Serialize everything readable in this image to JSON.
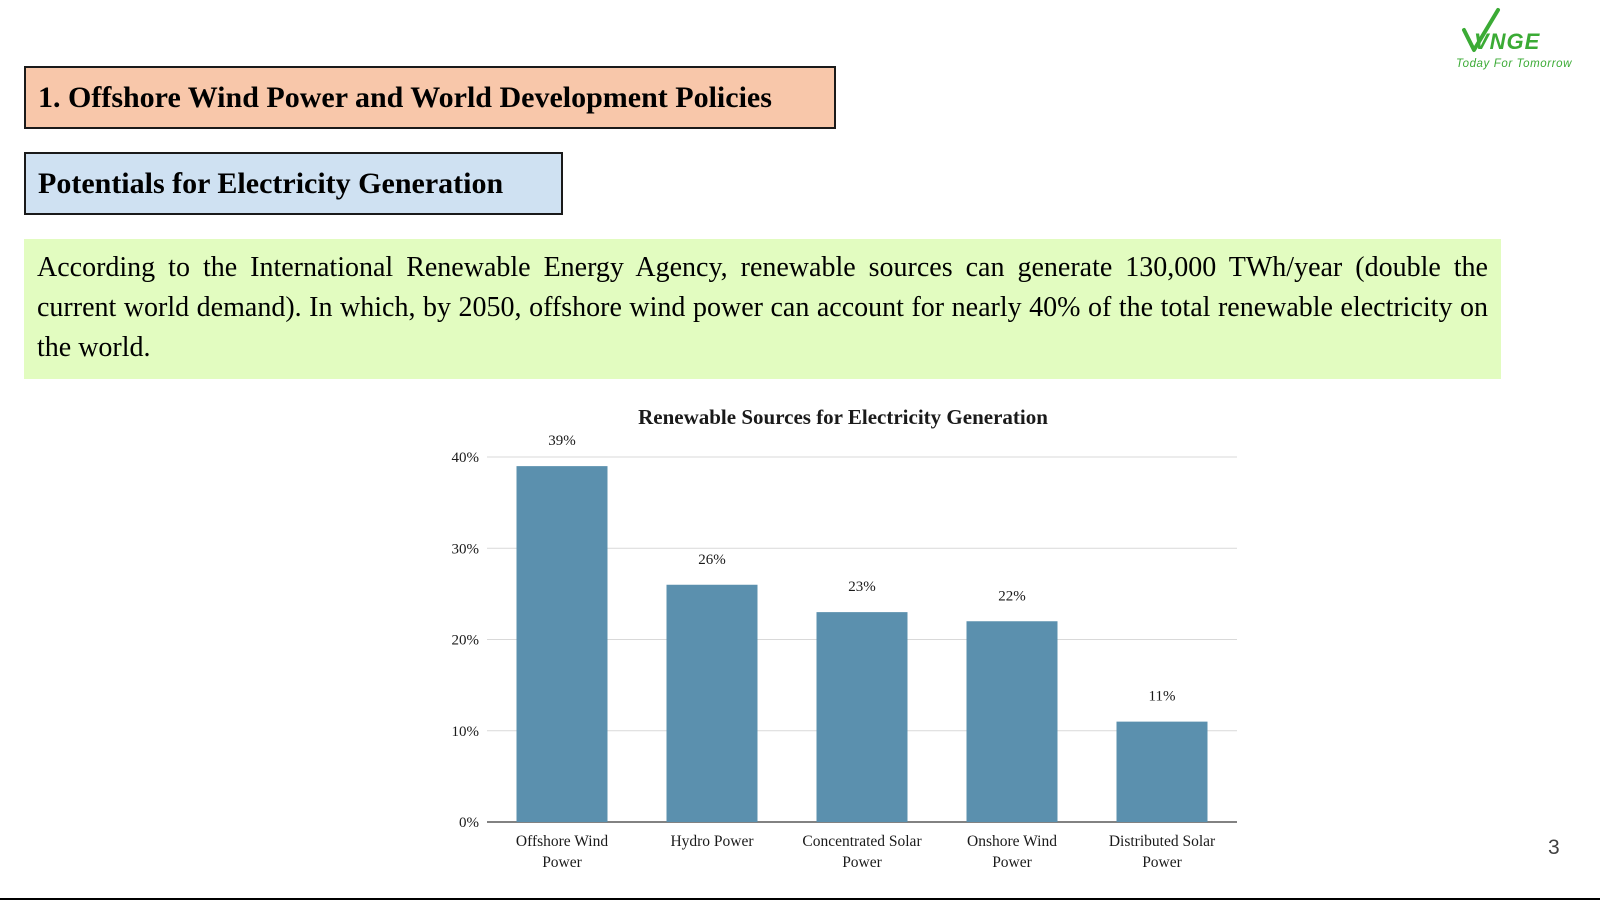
{
  "slide": {
    "section_title": "1. Offshore Wind Power and World Development Policies",
    "sub_title": "Potentials for Electricity Generation",
    "intro_text": "According to the  International Renewable Energy Agency, renewable sources can generate 130,000 TWh/year (double the current world demand). In which, by 2050, offshore wind power can account for nearly 40% of the total renewable electricity on the world.",
    "page_number": "3"
  },
  "logo": {
    "mark": "VNGE",
    "tagline": "Today For Tomorrow",
    "color": "#3bab35"
  },
  "chart_data": {
    "type": "bar",
    "title": "Renewable Sources for Electricity Generation",
    "categories": [
      [
        "Offshore Wind",
        "Power"
      ],
      [
        "Hydro Power"
      ],
      [
        "Concentrated Solar",
        "Power"
      ],
      [
        "Onshore Wind",
        "Power"
      ],
      [
        "Distributed Solar",
        "Power"
      ]
    ],
    "values": [
      39,
      26,
      23,
      22,
      11
    ],
    "value_labels": [
      "39%",
      "26%",
      "23%",
      "22%",
      "11%"
    ],
    "y_ticks": [
      0,
      10,
      20,
      30,
      40
    ],
    "y_tick_labels": [
      "0%",
      "10%",
      "20%",
      "30%",
      "40%"
    ],
    "ylim": [
      0,
      40
    ],
    "grid": true,
    "bar_color": "#5b90ae",
    "xlabel": "",
    "ylabel": ""
  }
}
